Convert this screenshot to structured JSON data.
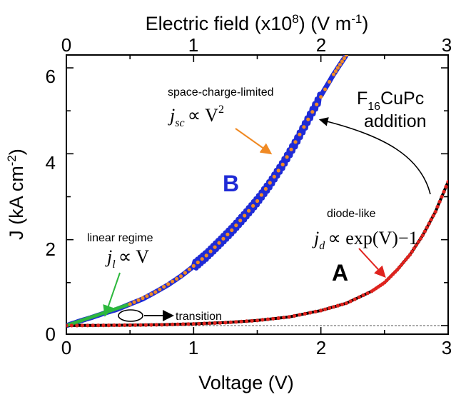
{
  "chart_data": {
    "type": "line",
    "title": "",
    "xlabel": "Voltage (V)",
    "ylabel": "J (kA cm",
    "ylabel_sup": "-2",
    "ylabel_end": ")",
    "top_axis_label": "Electric field (x10",
    "top_axis_label_sup": "8",
    "top_axis_label_mid": ") (V m",
    "top_axis_label_sup2": "-1",
    "top_axis_label_end": ")",
    "xlim": [
      0,
      3
    ],
    "ylim": [
      -0.2,
      6.3
    ],
    "top_xlim": [
      0,
      3
    ],
    "x_ticks": [
      "0",
      "1",
      "2",
      "3"
    ],
    "top_x_ticks": [
      "0",
      "1",
      "2",
      "3"
    ],
    "y_ticks": [
      "0",
      "2",
      "4",
      "6"
    ],
    "series": [
      {
        "name": "B",
        "color": "#1f2bd6",
        "x": [
          0,
          0.1,
          0.2,
          0.3,
          0.4,
          0.5,
          0.6,
          0.7,
          0.8,
          0.9,
          1.0,
          1.1,
          1.2,
          1.3,
          1.4,
          1.5,
          1.6,
          1.7,
          1.8,
          1.9,
          2.0,
          2.1,
          2.2
        ],
        "y": [
          0.0,
          0.1,
          0.19,
          0.29,
          0.38,
          0.5,
          0.62,
          0.78,
          0.95,
          1.15,
          1.38,
          1.63,
          1.92,
          2.22,
          2.55,
          2.9,
          3.3,
          3.75,
          4.25,
          4.8,
          5.35,
          5.85,
          6.3
        ]
      },
      {
        "name": "A",
        "color": "#000000",
        "x": [
          0,
          0.25,
          0.5,
          0.75,
          1.0,
          1.25,
          1.5,
          1.75,
          2.0,
          2.2,
          2.4,
          2.5,
          2.6,
          2.7,
          2.8,
          2.9,
          3.0
        ],
        "y": [
          0.0,
          0.005,
          0.01,
          0.02,
          0.04,
          0.07,
          0.12,
          0.2,
          0.35,
          0.52,
          0.8,
          1.0,
          1.3,
          1.65,
          2.1,
          2.65,
          3.35
        ]
      }
    ],
    "fits": [
      {
        "label": "linear regime",
        "equation": "j_l ∝ V",
        "color": "#2db83d",
        "x": [
          0,
          0.1,
          0.2,
          0.3,
          0.4,
          0.5
        ],
        "y": [
          0.0,
          0.1,
          0.2,
          0.3,
          0.4,
          0.5
        ]
      },
      {
        "label": "space-charge-limited",
        "equation": "j_sc ∝ V^2",
        "color": "#f08a24",
        "x": [
          0.5,
          0.7,
          0.9,
          1.1,
          1.3,
          1.5,
          1.7,
          1.9,
          2.1,
          2.2
        ],
        "y": [
          0.5,
          0.78,
          1.15,
          1.63,
          2.22,
          2.9,
          3.75,
          4.8,
          5.85,
          6.3
        ]
      },
      {
        "label": "diode-like",
        "equation": "j_d ∝ exp(V)−1",
        "color": "#e0231e",
        "x": [
          0,
          0.25,
          0.5,
          0.75,
          1.0,
          1.25,
          1.5,
          1.75,
          2.0,
          2.2,
          2.4,
          2.5,
          2.6,
          2.7,
          2.8,
          2.9,
          3.0
        ],
        "y": [
          0.0,
          0.005,
          0.01,
          0.02,
          0.04,
          0.07,
          0.12,
          0.2,
          0.35,
          0.52,
          0.8,
          1.0,
          1.3,
          1.65,
          2.1,
          2.65,
          3.35
        ]
      }
    ],
    "annotations": {
      "series_b_label": "B",
      "series_a_label": "A",
      "f16_main": "F",
      "f16_sub": "16",
      "f16_rest": "CuPc",
      "addition": "addition",
      "transition": "transition",
      "linear_regime": "linear regime",
      "linear_eq_j": "j",
      "linear_eq_sub": "l",
      "linear_eq_rest": "∝ V",
      "scl": "space-charge-limited",
      "scl_eq_j": "j",
      "scl_eq_sub": "sc",
      "scl_eq_rest": "∝ V",
      "scl_eq_sup": "2",
      "diode": "diode-like",
      "diode_eq_j": "j",
      "diode_eq_sub": "d",
      "diode_eq_rest": "∝ exp(V)−1"
    },
    "grid": false,
    "zero_line": "dashed"
  }
}
